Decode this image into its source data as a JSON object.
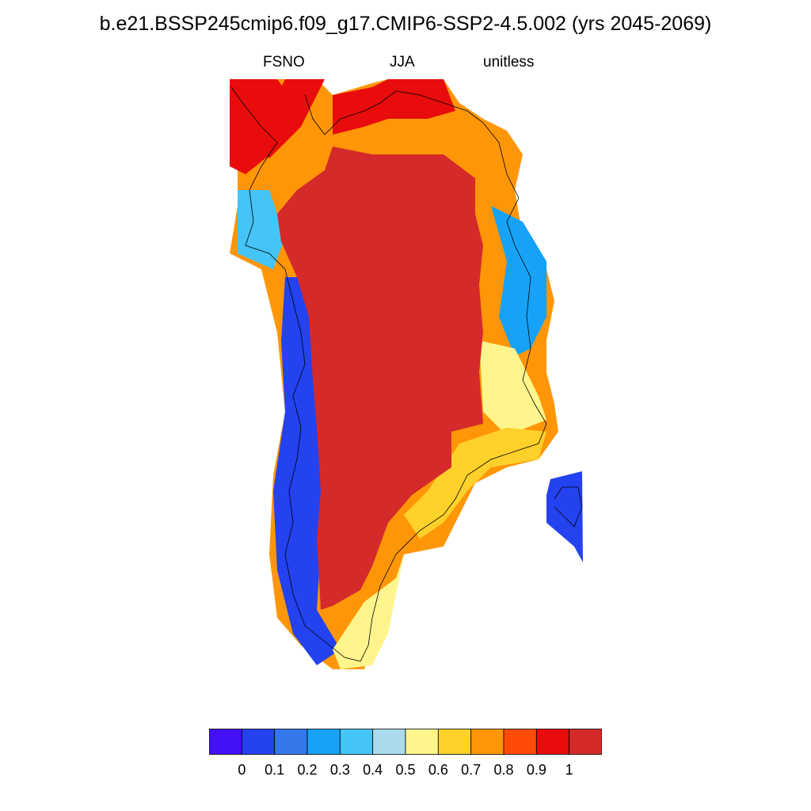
{
  "title": "b.e21.BSSP245cmip6.f09_g17.CMIP6-SSP2-4.5.002 (yrs 2045-2069)",
  "subtitle_left": "FSNO",
  "subtitle_center": "JJA",
  "subtitle_right": "unitless",
  "colorbar": {
    "colors": [
      "#4410f5",
      "#2442f0",
      "#3478ea",
      "#16a3f7",
      "#45c4f7",
      "#abdaee",
      "#fff58c",
      "#ffd12a",
      "#ff9608",
      "#ff4b08",
      "#e80c0c",
      "#d42a2a"
    ],
    "tick_labels": [
      "0",
      "0.1",
      "0.2",
      "0.3",
      "0.4",
      "0.5",
      "0.6",
      "0.7",
      "0.8",
      "0.9",
      "1"
    ]
  }
}
